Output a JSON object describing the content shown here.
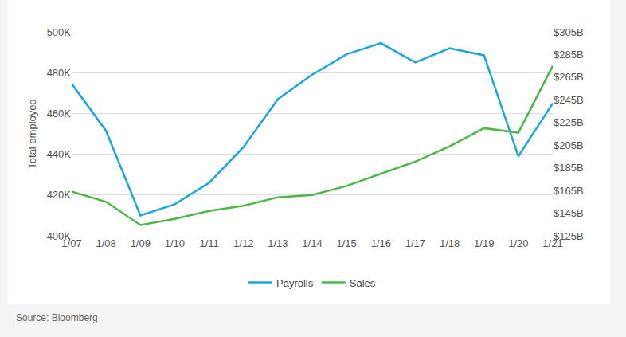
{
  "chart_data": {
    "type": "line",
    "source": "Source: Bloomberg",
    "y_label": "Total employed",
    "categories": [
      "1/07",
      "1/08",
      "1/09",
      "1/10",
      "1/11",
      "1/12",
      "1/13",
      "1/14",
      "1/15",
      "1/16",
      "1/17",
      "1/18",
      "1/19",
      "1/20",
      "1/21"
    ],
    "series": [
      {
        "name": "Payrolls",
        "color": "#1ba6de",
        "values": [
          474600,
          451500,
          410000,
          415500,
          426000,
          443500,
          467000,
          479000,
          489000,
          494500,
          485000,
          492000,
          488500,
          439000,
          465000
        ]
      },
      {
        "name": "Sales",
        "color": "#4db848",
        "axis": "y2",
        "values": [
          164,
          155,
          134.5,
          140,
          147,
          151.5,
          159,
          161,
          169,
          180,
          190.5,
          204,
          220,
          216,
          275
        ]
      }
    ],
    "ylim": [
      400000,
      500000
    ],
    "yticks": [
      {
        "value": 400000,
        "label": "400K"
      },
      {
        "value": 420000,
        "label": "420K"
      },
      {
        "value": 440000,
        "label": "440K"
      },
      {
        "value": 460000,
        "label": "460K"
      },
      {
        "value": 480000,
        "label": "480K"
      },
      {
        "value": 500000,
        "label": "500K"
      }
    ],
    "y2lim": [
      125,
      305
    ],
    "y2ticks": [
      {
        "value": 125,
        "label": "$125B"
      },
      {
        "value": 145,
        "label": "$145B"
      },
      {
        "value": 165,
        "label": "$165B"
      },
      {
        "value": 185,
        "label": "$185B"
      },
      {
        "value": 205,
        "label": "$205B"
      },
      {
        "value": 225,
        "label": "$225B"
      },
      {
        "value": 245,
        "label": "$245B"
      },
      {
        "value": 265,
        "label": "$265B"
      },
      {
        "value": 285,
        "label": "$285B"
      },
      {
        "value": 305,
        "label": "$305B"
      }
    ],
    "grid": true,
    "legend": "bottom"
  }
}
